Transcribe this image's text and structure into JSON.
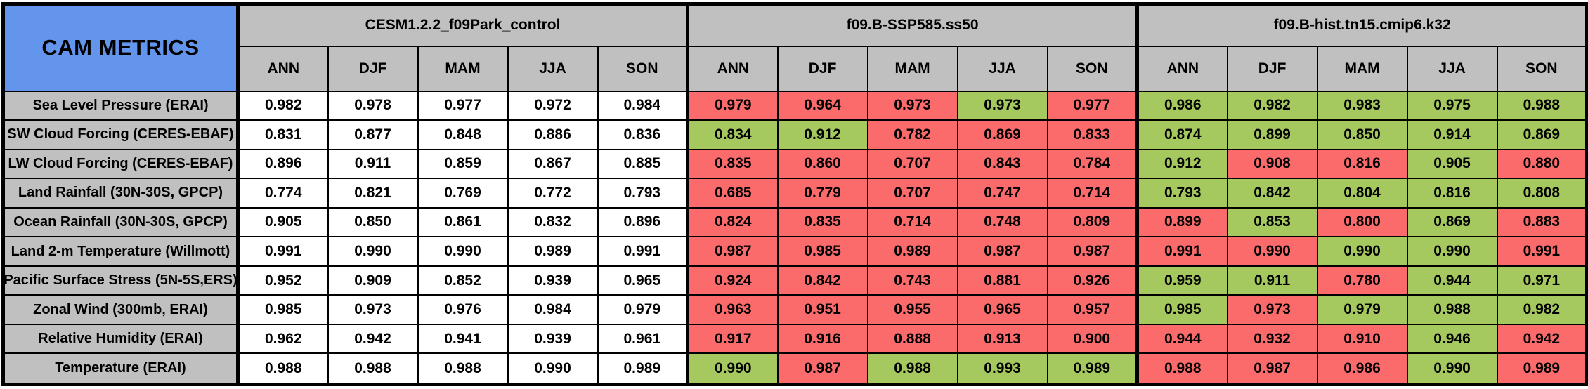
{
  "colors": {
    "header_blue": "#6495ED",
    "header_gray": "#C0C0C0",
    "better_green": "#A5C95E",
    "worse_red": "#FC6B6B",
    "cell_white": "#FFFFFF",
    "border_black": "#000000"
  },
  "chart_data": {
    "type": "table",
    "title": "CAM METRICS",
    "season_columns": [
      "ANN",
      "DJF",
      "MAM",
      "JJA",
      "SON"
    ],
    "groups": [
      {
        "name": "CESM1.2.2_f09Park_control"
      },
      {
        "name": "f09.B-SSP585.ss50"
      },
      {
        "name": "f09.B-hist.tn15.cmip6.k32"
      }
    ],
    "rows": [
      {
        "label": "Sea Level Pressure (ERAI)",
        "groups": [
          {
            "values": [
              "0.982",
              "0.978",
              "0.977",
              "0.972",
              "0.984"
            ],
            "cell_colors": [
              "white",
              "white",
              "white",
              "white",
              "white"
            ]
          },
          {
            "values": [
              "0.979",
              "0.964",
              "0.973",
              "0.973",
              "0.977"
            ],
            "cell_colors": [
              "red",
              "red",
              "red",
              "green",
              "red"
            ]
          },
          {
            "values": [
              "0.986",
              "0.982",
              "0.983",
              "0.975",
              "0.988"
            ],
            "cell_colors": [
              "green",
              "green",
              "green",
              "green",
              "green"
            ]
          }
        ]
      },
      {
        "label": "SW Cloud Forcing (CERES-EBAF)",
        "groups": [
          {
            "values": [
              "0.831",
              "0.877",
              "0.848",
              "0.886",
              "0.836"
            ],
            "cell_colors": [
              "white",
              "white",
              "white",
              "white",
              "white"
            ]
          },
          {
            "values": [
              "0.834",
              "0.912",
              "0.782",
              "0.869",
              "0.833"
            ],
            "cell_colors": [
              "green",
              "green",
              "red",
              "red",
              "red"
            ]
          },
          {
            "values": [
              "0.874",
              "0.899",
              "0.850",
              "0.914",
              "0.869"
            ],
            "cell_colors": [
              "green",
              "green",
              "green",
              "green",
              "green"
            ]
          }
        ]
      },
      {
        "label": "LW Cloud Forcing (CERES-EBAF)",
        "groups": [
          {
            "values": [
              "0.896",
              "0.911",
              "0.859",
              "0.867",
              "0.885"
            ],
            "cell_colors": [
              "white",
              "white",
              "white",
              "white",
              "white"
            ]
          },
          {
            "values": [
              "0.835",
              "0.860",
              "0.707",
              "0.843",
              "0.784"
            ],
            "cell_colors": [
              "red",
              "red",
              "red",
              "red",
              "red"
            ]
          },
          {
            "values": [
              "0.912",
              "0.908",
              "0.816",
              "0.905",
              "0.880"
            ],
            "cell_colors": [
              "green",
              "red",
              "red",
              "green",
              "red"
            ]
          }
        ]
      },
      {
        "label": "Land Rainfall (30N-30S, GPCP)",
        "groups": [
          {
            "values": [
              "0.774",
              "0.821",
              "0.769",
              "0.772",
              "0.793"
            ],
            "cell_colors": [
              "white",
              "white",
              "white",
              "white",
              "white"
            ]
          },
          {
            "values": [
              "0.685",
              "0.779",
              "0.707",
              "0.747",
              "0.714"
            ],
            "cell_colors": [
              "red",
              "red",
              "red",
              "red",
              "red"
            ]
          },
          {
            "values": [
              "0.793",
              "0.842",
              "0.804",
              "0.816",
              "0.808"
            ],
            "cell_colors": [
              "green",
              "green",
              "green",
              "green",
              "green"
            ]
          }
        ]
      },
      {
        "label": "Ocean Rainfall (30N-30S, GPCP)",
        "groups": [
          {
            "values": [
              "0.905",
              "0.850",
              "0.861",
              "0.832",
              "0.896"
            ],
            "cell_colors": [
              "white",
              "white",
              "white",
              "white",
              "white"
            ]
          },
          {
            "values": [
              "0.824",
              "0.835",
              "0.714",
              "0.748",
              "0.809"
            ],
            "cell_colors": [
              "red",
              "red",
              "red",
              "red",
              "red"
            ]
          },
          {
            "values": [
              "0.899",
              "0.853",
              "0.800",
              "0.869",
              "0.883"
            ],
            "cell_colors": [
              "red",
              "green",
              "red",
              "green",
              "red"
            ]
          }
        ]
      },
      {
        "label": "Land 2-m Temperature (Willmott)",
        "groups": [
          {
            "values": [
              "0.991",
              "0.990",
              "0.990",
              "0.989",
              "0.991"
            ],
            "cell_colors": [
              "white",
              "white",
              "white",
              "white",
              "white"
            ]
          },
          {
            "values": [
              "0.987",
              "0.985",
              "0.989",
              "0.987",
              "0.987"
            ],
            "cell_colors": [
              "red",
              "red",
              "red",
              "red",
              "red"
            ]
          },
          {
            "values": [
              "0.991",
              "0.990",
              "0.990",
              "0.990",
              "0.991"
            ],
            "cell_colors": [
              "red",
              "red",
              "green",
              "green",
              "red"
            ]
          }
        ]
      },
      {
        "label": "Pacific Surface Stress (5N-5S,ERS)",
        "groups": [
          {
            "values": [
              "0.952",
              "0.909",
              "0.852",
              "0.939",
              "0.965"
            ],
            "cell_colors": [
              "white",
              "white",
              "white",
              "white",
              "white"
            ]
          },
          {
            "values": [
              "0.924",
              "0.842",
              "0.743",
              "0.881",
              "0.926"
            ],
            "cell_colors": [
              "red",
              "red",
              "red",
              "red",
              "red"
            ]
          },
          {
            "values": [
              "0.959",
              "0.911",
              "0.780",
              "0.944",
              "0.971"
            ],
            "cell_colors": [
              "green",
              "green",
              "red",
              "green",
              "green"
            ]
          }
        ]
      },
      {
        "label": "Zonal Wind (300mb, ERAI)",
        "groups": [
          {
            "values": [
              "0.985",
              "0.973",
              "0.976",
              "0.984",
              "0.979"
            ],
            "cell_colors": [
              "white",
              "white",
              "white",
              "white",
              "white"
            ]
          },
          {
            "values": [
              "0.963",
              "0.951",
              "0.955",
              "0.965",
              "0.957"
            ],
            "cell_colors": [
              "red",
              "red",
              "red",
              "red",
              "red"
            ]
          },
          {
            "values": [
              "0.985",
              "0.973",
              "0.979",
              "0.988",
              "0.982"
            ],
            "cell_colors": [
              "green",
              "red",
              "green",
              "green",
              "green"
            ]
          }
        ]
      },
      {
        "label": "Relative Humidity (ERAI)",
        "groups": [
          {
            "values": [
              "0.962",
              "0.942",
              "0.941",
              "0.939",
              "0.961"
            ],
            "cell_colors": [
              "white",
              "white",
              "white",
              "white",
              "white"
            ]
          },
          {
            "values": [
              "0.917",
              "0.916",
              "0.888",
              "0.913",
              "0.900"
            ],
            "cell_colors": [
              "red",
              "red",
              "red",
              "red",
              "red"
            ]
          },
          {
            "values": [
              "0.944",
              "0.932",
              "0.910",
              "0.946",
              "0.942"
            ],
            "cell_colors": [
              "red",
              "red",
              "red",
              "green",
              "red"
            ]
          }
        ]
      },
      {
        "label": "Temperature (ERAI)",
        "groups": [
          {
            "values": [
              "0.988",
              "0.988",
              "0.988",
              "0.990",
              "0.989"
            ],
            "cell_colors": [
              "white",
              "white",
              "white",
              "white",
              "white"
            ]
          },
          {
            "values": [
              "0.990",
              "0.987",
              "0.988",
              "0.993",
              "0.989"
            ],
            "cell_colors": [
              "green",
              "red",
              "green",
              "green",
              "green"
            ]
          },
          {
            "values": [
              "0.988",
              "0.987",
              "0.986",
              "0.990",
              "0.989"
            ],
            "cell_colors": [
              "red",
              "red",
              "red",
              "green",
              "red"
            ]
          }
        ]
      }
    ]
  }
}
